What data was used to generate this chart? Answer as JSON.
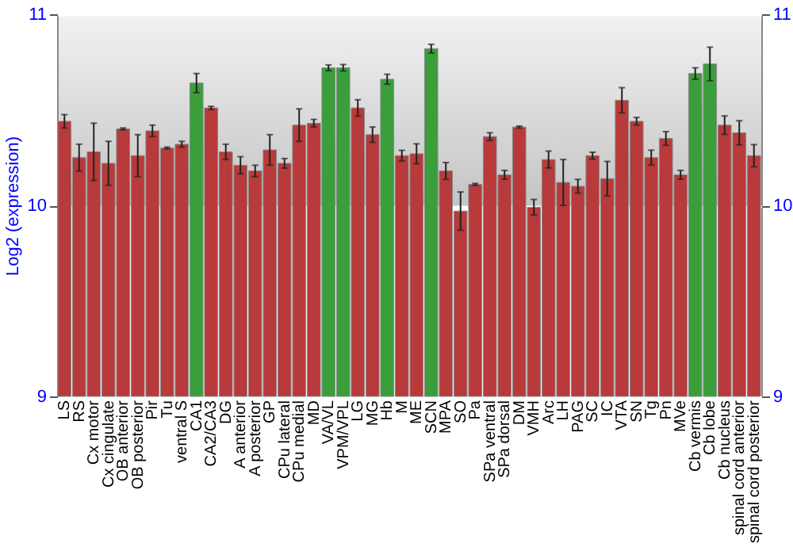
{
  "chart_data": {
    "type": "bar",
    "ylabel": "Log2 (expression)",
    "categories": [
      "LS",
      "RS",
      "Cx motor",
      "Cx cingulate",
      "OB anterior",
      "OB posterior",
      "Pir",
      "Tu",
      "ventral S",
      "CA1",
      "CA2/CA3",
      "DG",
      "A anterior",
      "A posterior",
      "GP",
      "CPu lateral",
      "CPu medial",
      "MD",
      "VA/VL",
      "VPM/VPL",
      "LG",
      "MG",
      "Hb",
      "M",
      "ME",
      "SCN",
      "MPA",
      "SO",
      "Pa",
      "SPa ventral",
      "SPa dorsal",
      "DM",
      "VMH",
      "Arc",
      "LH",
      "PAG",
      "SC",
      "IC",
      "VTA",
      "SN",
      "Tg",
      "Pn",
      "MVe",
      "Cb vermis",
      "Cb lobe",
      "Cb nucleus",
      "spinal cord anterior",
      "spinal cord posterior"
    ],
    "values": [
      10.44,
      10.25,
      10.28,
      10.22,
      10.4,
      10.26,
      10.39,
      10.3,
      10.32,
      10.64,
      10.51,
      10.28,
      10.21,
      10.18,
      10.29,
      10.22,
      10.42,
      10.43,
      10.72,
      10.72,
      10.51,
      10.37,
      10.66,
      10.26,
      10.27,
      10.82,
      10.18,
      9.97,
      10.11,
      10.36,
      10.16,
      10.41,
      9.99,
      10.24,
      10.12,
      10.1,
      10.26,
      10.14,
      10.55,
      10.44,
      10.25,
      10.35,
      10.16,
      10.69,
      10.74,
      10.42,
      10.38,
      10.26
    ],
    "errors": [
      0.035,
      0.07,
      0.15,
      0.115,
      0.005,
      0.11,
      0.03,
      0.005,
      0.015,
      0.05,
      0.008,
      0.04,
      0.045,
      0.03,
      0.08,
      0.025,
      0.085,
      0.02,
      0.015,
      0.017,
      0.043,
      0.04,
      0.026,
      0.028,
      0.052,
      0.023,
      0.044,
      0.1,
      0.005,
      0.02,
      0.023,
      0.005,
      0.041,
      0.044,
      0.12,
      0.036,
      0.018,
      0.09,
      0.066,
      0.02,
      0.039,
      0.036,
      0.023,
      0.03,
      0.088,
      0.048,
      0.063,
      0.058
    ],
    "colors": [
      "#b83a3a",
      "#b83a3a",
      "#b83a3a",
      "#b83a3a",
      "#b83a3a",
      "#b83a3a",
      "#b83a3a",
      "#b83a3a",
      "#b83a3a",
      "#3a9e3a",
      "#b83a3a",
      "#b83a3a",
      "#b83a3a",
      "#b83a3a",
      "#b83a3a",
      "#b83a3a",
      "#b83a3a",
      "#b83a3a",
      "#3a9e3a",
      "#3a9e3a",
      "#b83a3a",
      "#b83a3a",
      "#3a9e3a",
      "#b83a3a",
      "#b83a3a",
      "#3a9e3a",
      "#b83a3a",
      "#b83a3a",
      "#b83a3a",
      "#b83a3a",
      "#b83a3a",
      "#b83a3a",
      "#b83a3a",
      "#b83a3a",
      "#b83a3a",
      "#b83a3a",
      "#b83a3a",
      "#b83a3a",
      "#b83a3a",
      "#b83a3a",
      "#b83a3a",
      "#b83a3a",
      "#b83a3a",
      "#3a9e3a",
      "#3a9e3a",
      "#b83a3a",
      "#b83a3a",
      "#b83a3a"
    ],
    "ylim": [
      9,
      11
    ],
    "yticks": [
      9,
      10,
      11
    ],
    "y2lim": [
      9,
      11
    ],
    "y2ticks": [
      9,
      10,
      11
    ],
    "grid": "y"
  }
}
